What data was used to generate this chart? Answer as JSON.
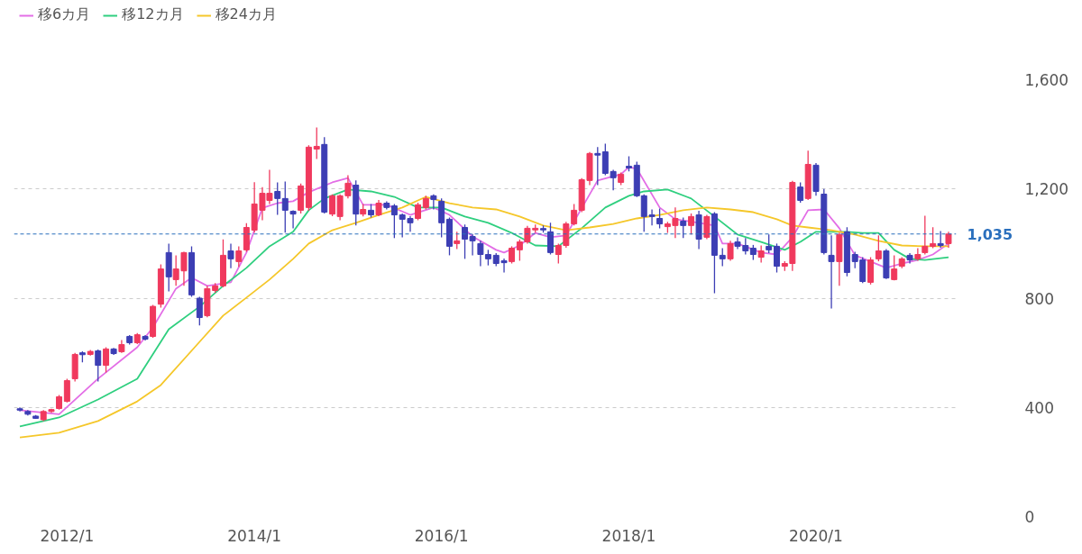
{
  "chart_data": {
    "type": "candlestick",
    "x": [
      "2011-07",
      "2011-08",
      "2011-09",
      "2011-10",
      "2011-11",
      "2011-12",
      "2012-01",
      "2012-02",
      "2012-03",
      "2012-04",
      "2012-05",
      "2012-06",
      "2012-07",
      "2012-08",
      "2012-09",
      "2012-10",
      "2012-11",
      "2012-12",
      "2013-01",
      "2013-02",
      "2013-03",
      "2013-04",
      "2013-05",
      "2013-06",
      "2013-07",
      "2013-08",
      "2013-09",
      "2013-10",
      "2013-11",
      "2013-12",
      "2014-01",
      "2014-02",
      "2014-03",
      "2014-04",
      "2014-05",
      "2014-06",
      "2014-07",
      "2014-08",
      "2014-09",
      "2014-10",
      "2014-11",
      "2014-12",
      "2015-01",
      "2015-02",
      "2015-03",
      "2015-04",
      "2015-05",
      "2015-06",
      "2015-07",
      "2015-08",
      "2015-09",
      "2015-10",
      "2015-11",
      "2015-12",
      "2016-01",
      "2016-02",
      "2016-03",
      "2016-04",
      "2016-05",
      "2016-06",
      "2016-07",
      "2016-08",
      "2016-09",
      "2016-10",
      "2016-11",
      "2016-12",
      "2017-01",
      "2017-02",
      "2017-03",
      "2017-04",
      "2017-05",
      "2017-06",
      "2017-07",
      "2017-08",
      "2017-09",
      "2017-10",
      "2017-11",
      "2017-12",
      "2018-01",
      "2018-02",
      "2018-03",
      "2018-04",
      "2018-05",
      "2018-06",
      "2018-07",
      "2018-08",
      "2018-09",
      "2018-10",
      "2018-11",
      "2018-12",
      "2019-01",
      "2019-02",
      "2019-03",
      "2019-04",
      "2019-05",
      "2019-06",
      "2019-07",
      "2019-08",
      "2019-09",
      "2019-10",
      "2019-11",
      "2019-12",
      "2020-01",
      "2020-02",
      "2020-03",
      "2020-04",
      "2020-05",
      "2020-06",
      "2020-07",
      "2020-08",
      "2020-09",
      "2020-10",
      "2020-11",
      "2020-12",
      "2021-01",
      "2021-02",
      "2021-03",
      "2021-04",
      "2021-05",
      "2021-06"
    ],
    "ohlc": [
      [
        395,
        400,
        385,
        390
      ],
      [
        385,
        390,
        370,
        375
      ],
      [
        368,
        372,
        358,
        360
      ],
      [
        355,
        390,
        350,
        385
      ],
      [
        385,
        395,
        380,
        392
      ],
      [
        396,
        445,
        392,
        439
      ],
      [
        422,
        505,
        418,
        498
      ],
      [
        505,
        600,
        495,
        594
      ],
      [
        600,
        605,
        565,
        593
      ],
      [
        594,
        610,
        590,
        605
      ],
      [
        607,
        612,
        495,
        554
      ],
      [
        554,
        620,
        528,
        614
      ],
      [
        614,
        618,
        592,
        597
      ],
      [
        604,
        647,
        600,
        630
      ],
      [
        660,
        665,
        630,
        637
      ],
      [
        637,
        672,
        632,
        666
      ],
      [
        660,
        665,
        645,
        650
      ],
      [
        660,
        775,
        655,
        770
      ],
      [
        778,
        924,
        765,
        907
      ],
      [
        967,
        1000,
        825,
        878
      ],
      [
        868,
        957,
        845,
        907
      ],
      [
        900,
        970,
        845,
        967
      ],
      [
        967,
        990,
        805,
        812
      ],
      [
        800,
        805,
        700,
        729
      ],
      [
        736,
        845,
        730,
        835
      ],
      [
        828,
        855,
        820,
        845
      ],
      [
        845,
        1015,
        840,
        957
      ],
      [
        973,
        1000,
        910,
        944
      ],
      [
        934,
        990,
        915,
        973
      ],
      [
        977,
        1075,
        970,
        1059
      ],
      [
        1049,
        1225,
        1040,
        1145
      ],
      [
        1122,
        1207,
        1085,
        1184
      ],
      [
        1158,
        1270,
        1145,
        1184
      ],
      [
        1191,
        1224,
        1105,
        1165
      ],
      [
        1165,
        1227,
        1040,
        1122
      ],
      [
        1118,
        1122,
        1056,
        1108
      ],
      [
        1122,
        1220,
        1110,
        1211
      ],
      [
        1132,
        1360,
        1120,
        1353
      ],
      [
        1346,
        1425,
        1310,
        1356
      ],
      [
        1363,
        1390,
        1110,
        1115
      ],
      [
        1108,
        1180,
        1100,
        1175
      ],
      [
        1099,
        1180,
        1085,
        1175
      ],
      [
        1175,
        1250,
        1165,
        1221
      ],
      [
        1214,
        1231,
        1066,
        1108
      ],
      [
        1108,
        1145,
        1099,
        1125
      ],
      [
        1122,
        1145,
        1095,
        1105
      ],
      [
        1105,
        1160,
        1100,
        1148
      ],
      [
        1148,
        1155,
        1125,
        1132
      ],
      [
        1138,
        1145,
        1020,
        1105
      ],
      [
        1105,
        1110,
        1023,
        1089
      ],
      [
        1092,
        1100,
        1043,
        1076
      ],
      [
        1092,
        1150,
        1085,
        1142
      ],
      [
        1132,
        1175,
        1125,
        1165
      ],
      [
        1175,
        1180,
        1125,
        1161
      ],
      [
        1155,
        1165,
        1023,
        1076
      ],
      [
        1089,
        1095,
        957,
        990
      ],
      [
        1000,
        1043,
        980,
        1010
      ],
      [
        1059,
        1070,
        944,
        1016
      ],
      [
        1026,
        1035,
        957,
        1010
      ],
      [
        1000,
        1010,
        917,
        960
      ],
      [
        960,
        977,
        920,
        944
      ],
      [
        957,
        965,
        917,
        927
      ],
      [
        937,
        945,
        894,
        930
      ],
      [
        934,
        990,
        927,
        983
      ],
      [
        977,
        1015,
        937,
        1006
      ],
      [
        1006,
        1065,
        1000,
        1056
      ],
      [
        1050,
        1070,
        1040,
        1056
      ],
      [
        1055,
        1066,
        1040,
        1050
      ],
      [
        1043,
        1076,
        960,
        967
      ],
      [
        960,
        1000,
        927,
        993
      ],
      [
        993,
        1080,
        985,
        1072
      ],
      [
        1072,
        1145,
        1066,
        1122
      ],
      [
        1122,
        1240,
        1115,
        1234
      ],
      [
        1231,
        1335,
        1214,
        1330
      ],
      [
        1330,
        1353,
        1214,
        1324
      ],
      [
        1336,
        1366,
        1250,
        1257
      ],
      [
        1264,
        1270,
        1195,
        1241
      ],
      [
        1224,
        1260,
        1214,
        1254
      ],
      [
        1283,
        1320,
        1264,
        1277
      ],
      [
        1287,
        1300,
        1170,
        1175
      ],
      [
        1175,
        1180,
        1043,
        1099
      ],
      [
        1105,
        1125,
        1066,
        1099
      ],
      [
        1092,
        1128,
        1056,
        1072
      ],
      [
        1062,
        1080,
        1039,
        1072
      ],
      [
        1066,
        1132,
        1020,
        1092
      ],
      [
        1082,
        1095,
        1020,
        1066
      ],
      [
        1066,
        1110,
        1033,
        1099
      ],
      [
        1105,
        1120,
        980,
        1016
      ],
      [
        1023,
        1105,
        1016,
        1099
      ],
      [
        1109,
        1115,
        818,
        957
      ],
      [
        957,
        983,
        917,
        944
      ],
      [
        944,
        1010,
        937,
        1000
      ],
      [
        1006,
        1023,
        980,
        990
      ],
      [
        993,
        1020,
        960,
        973
      ],
      [
        983,
        995,
        940,
        960
      ],
      [
        950,
        993,
        930,
        973
      ],
      [
        990,
        1033,
        965,
        977
      ],
      [
        990,
        1000,
        894,
        917
      ],
      [
        917,
        935,
        900,
        927
      ],
      [
        927,
        1230,
        900,
        1224
      ],
      [
        1207,
        1224,
        1150,
        1158
      ],
      [
        1165,
        1340,
        1160,
        1290
      ],
      [
        1287,
        1295,
        1175,
        1191
      ],
      [
        1181,
        1200,
        960,
        967
      ],
      [
        957,
        1030,
        762,
        934
      ],
      [
        934,
        1040,
        845,
        1033
      ],
      [
        1043,
        1060,
        880,
        894
      ],
      [
        960,
        970,
        910,
        934
      ],
      [
        940,
        950,
        855,
        861
      ],
      [
        858,
        950,
        850,
        940
      ],
      [
        944,
        1030,
        935,
        973
      ],
      [
        973,
        980,
        870,
        874
      ],
      [
        868,
        957,
        865,
        907
      ],
      [
        917,
        950,
        910,
        944
      ],
      [
        957,
        965,
        927,
        940
      ],
      [
        944,
        983,
        937,
        960
      ],
      [
        967,
        1102,
        960,
        990
      ],
      [
        990,
        1060,
        983,
        1000
      ],
      [
        1000,
        1046,
        985,
        993
      ],
      [
        1000,
        1043,
        985,
        1035
      ]
    ],
    "series": [
      {
        "type": "line",
        "name": "移6カ月",
        "color": "#e36ee6",
        "x": [
          "2011-07",
          "2011-12",
          "2012-05",
          "2012-10",
          "2012-12",
          "2013-03",
          "2013-05",
          "2013-07",
          "2013-10",
          "2013-12",
          "2014-02",
          "2014-04",
          "2014-06",
          "2014-08",
          "2014-11",
          "2015-01",
          "2015-03",
          "2015-06",
          "2015-09",
          "2015-12",
          "2016-02",
          "2016-05",
          "2016-08",
          "2016-09",
          "2016-11",
          "2017-01",
          "2017-03",
          "2017-05",
          "2017-09",
          "2017-12",
          "2018-01",
          "2018-02",
          "2018-05",
          "2018-07",
          "2018-10",
          "2018-12",
          "2019-01",
          "2019-03",
          "2019-06",
          "2019-08",
          "2019-10",
          "2019-12",
          "2020-02",
          "2020-04",
          "2020-06",
          "2020-08",
          "2020-10",
          "2020-12",
          "2021-02",
          "2021-04",
          "2021-06"
        ],
        "values": [
          390,
          375,
          505,
          620,
          693,
          835,
          875,
          845,
          858,
          967,
          1130,
          1148,
          1155,
          1188,
          1224,
          1240,
          1142,
          1142,
          1105,
          1132,
          1105,
          1026,
          977,
          967,
          993,
          1039,
          1023,
          1030,
          1231,
          1254,
          1280,
          1274,
          1132,
          1089,
          1076,
          1066,
          1000,
          1000,
          967,
          960,
          1023,
          1122,
          1125,
          1056,
          957,
          934,
          911,
          927,
          940,
          960,
          1000
        ]
      },
      {
        "type": "line",
        "name": "移12カ月",
        "color": "#2fcf7f",
        "x": [
          "2011-07",
          "2011-12",
          "2012-05",
          "2012-10",
          "2013-02",
          "2013-06",
          "2013-09",
          "2013-12",
          "2014-03",
          "2014-06",
          "2014-08",
          "2014-10",
          "2015-01",
          "2015-04",
          "2015-07",
          "2015-10",
          "2016-01",
          "2016-04",
          "2016-07",
          "2016-10",
          "2017-01",
          "2017-04",
          "2017-07",
          "2017-10",
          "2018-01",
          "2018-03",
          "2018-06",
          "2018-09",
          "2018-12",
          "2019-03",
          "2019-06",
          "2019-09",
          "2019-11",
          "2020-01",
          "2020-03",
          "2020-05",
          "2020-07",
          "2020-09",
          "2020-11",
          "2021-01",
          "2021-03",
          "2021-06"
        ],
        "values": [
          330,
          363,
          429,
          505,
          686,
          769,
          845,
          911,
          990,
          1043,
          1122,
          1165,
          1198,
          1191,
          1171,
          1132,
          1132,
          1099,
          1076,
          1039,
          993,
          990,
          1056,
          1132,
          1175,
          1191,
          1198,
          1165,
          1099,
          1033,
          1006,
          977,
          1006,
          1043,
          1043,
          1043,
          1039,
          1039,
          977,
          944,
          940,
          950
        ]
      },
      {
        "type": "line",
        "name": "移24カ月",
        "color": "#f5c72a",
        "x": [
          "2011-07",
          "2011-12",
          "2012-05",
          "2012-10",
          "2013-01",
          "2013-06",
          "2013-09",
          "2013-12",
          "2014-03",
          "2014-06",
          "2014-08",
          "2014-11",
          "2015-02",
          "2015-05",
          "2015-08",
          "2015-11",
          "2016-02",
          "2016-05",
          "2016-08",
          "2016-11",
          "2017-02",
          "2017-05",
          "2017-08",
          "2017-11",
          "2018-02",
          "2018-05",
          "2018-08",
          "2018-11",
          "2019-02",
          "2019-05",
          "2019-08",
          "2019-10",
          "2019-12",
          "2020-03",
          "2020-06",
          "2020-09",
          "2020-12",
          "2021-03",
          "2021-06"
        ],
        "values": [
          290,
          307,
          350,
          422,
          482,
          640,
          736,
          802,
          868,
          944,
          1000,
          1049,
          1076,
          1105,
          1132,
          1171,
          1148,
          1132,
          1125,
          1099,
          1066,
          1049,
          1059,
          1072,
          1092,
          1105,
          1122,
          1132,
          1125,
          1115,
          1089,
          1066,
          1059,
          1049,
          1033,
          1010,
          993,
          990,
          990
        ]
      }
    ],
    "xlim": [
      "2011-06-08",
      "2021-07-01"
    ],
    "xticks": [
      {
        "value": "2012-01-01",
        "label": "2012/1"
      },
      {
        "value": "2014-01-01",
        "label": "2014/1"
      },
      {
        "value": "2016-01-01",
        "label": "2016/1"
      },
      {
        "value": "2018-01-01",
        "label": "2018/1"
      },
      {
        "value": "2020-01-01",
        "label": "2020/1"
      }
    ],
    "ylim": [
      0,
      1600
    ],
    "yticks": [
      0,
      400,
      800,
      {
        "value": 1200,
        "label": "1,200"
      },
      {
        "value": 1600,
        "label": "1,600"
      }
    ],
    "ref_lines": [
      {
        "axis": "y",
        "value": 1035,
        "label": "1,035",
        "color": "#2a6fbd",
        "line_style": "dashed"
      }
    ],
    "grid": "y",
    "legend": "top left"
  }
}
